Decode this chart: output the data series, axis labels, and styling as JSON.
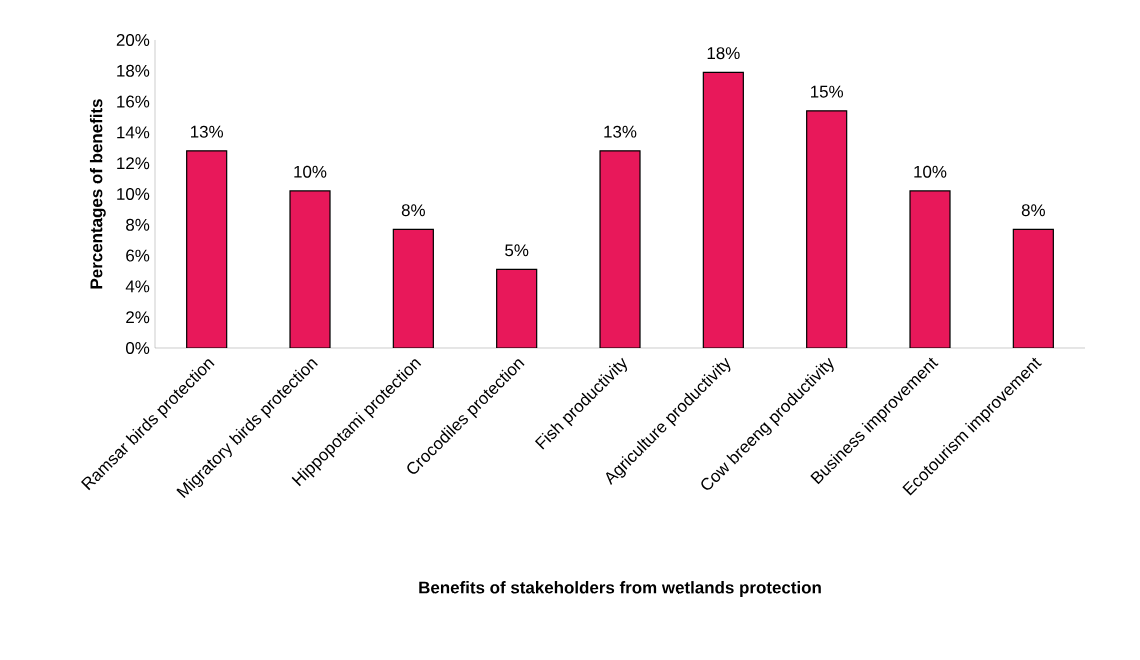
{
  "chart_data": {
    "type": "bar",
    "xlabel": "Benefits of stakeholders from wetlands protection",
    "ylabel": "Percentages of benefits",
    "categories": [
      "Ramsar birds protection",
      "Migratory birds protection",
      "Hippopotami protection",
      "Crocodiles protection",
      "Fish  productivity",
      "Agriculture productivity",
      "Cow breeng productivity",
      "Business improvement",
      "Ecotourism improvement"
    ],
    "values": [
      12.8,
      10.2,
      7.7,
      5.1,
      12.8,
      17.9,
      15.4,
      10.2,
      7.7
    ],
    "value_labels": [
      "13%",
      "10%",
      "8%",
      "5%",
      "13%",
      "18%",
      "15%",
      "10%",
      "8%"
    ],
    "color": "#e8185a",
    "ylim": [
      0,
      20
    ],
    "yticks": [
      {
        "value": 0,
        "label": "0%"
      },
      {
        "value": 2,
        "label": "2%"
      },
      {
        "value": 4,
        "label": "4%"
      },
      {
        "value": 6,
        "label": "6%"
      },
      {
        "value": 8,
        "label": "8%"
      },
      {
        "value": 10,
        "label": "10%"
      },
      {
        "value": 12,
        "label": "12%"
      },
      {
        "value": 14,
        "label": "14%"
      },
      {
        "value": 16,
        "label": "16%"
      },
      {
        "value": 18,
        "label": "18%"
      },
      {
        "value": 20,
        "label": "20%"
      }
    ]
  }
}
